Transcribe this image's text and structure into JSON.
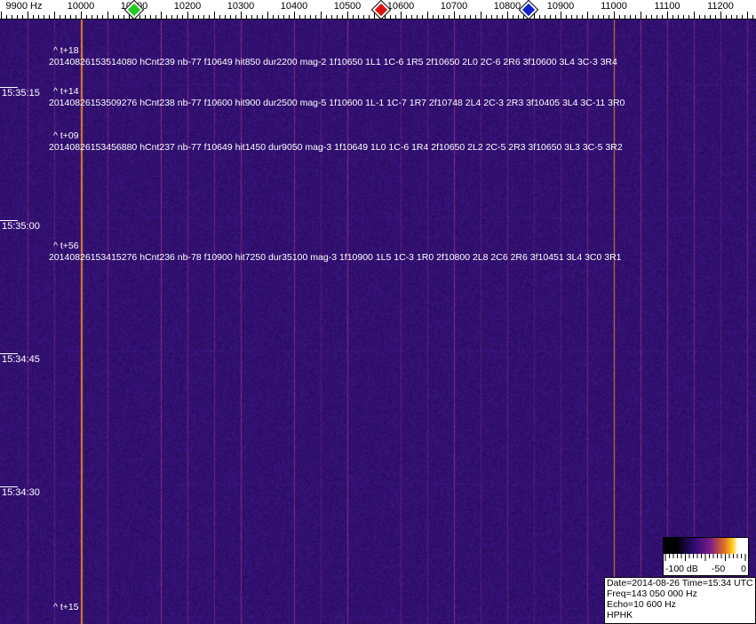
{
  "axis": {
    "unit_label": "9900 Hz",
    "freq_labels": [
      "9900 Hz",
      "10000",
      "10100",
      "10200",
      "10300",
      "10400",
      "10500",
      "10600",
      "10700",
      "10800",
      "10900",
      "11000",
      "11100",
      "11200"
    ],
    "freqs": [
      9900,
      10000,
      10100,
      10200,
      10300,
      10400,
      10500,
      10600,
      10700,
      10800,
      10900,
      11000,
      11100,
      11200
    ]
  },
  "markers": [
    {
      "name": "green-marker",
      "freq": 10100,
      "color": "#22cc22"
    },
    {
      "name": "red-marker",
      "freq": 10563,
      "color": "#dd1111"
    },
    {
      "name": "blue-marker",
      "freq": 10840,
      "color": "#1122cc"
    }
  ],
  "time_labels": [
    "15:35:15",
    "15:35:00",
    "15:34:45",
    "15:34:30"
  ],
  "annotations": [
    {
      "tag": "^ t+18",
      "text": "20140826153514080 hCnt239 nb-77 f10649 hit850 dur2200 mag-2 1f10650 1L1 1C-6 1R5 2f10650 2L0 2C-6 2R6 3f10600 3L4 3C-3 3R4"
    },
    {
      "tag": "^ t+14",
      "text": "20140826153509276 hCnt238 nb-77 f10600 hit900 dur2500 mag-5 1f10600 1L-1 1C-7 1R7 2f10748 2L4 2C-3 2R3 3f10405 3L4 3C-11 3R0"
    },
    {
      "tag": "^ t+09",
      "text": "20140826153456880 hCnt237 nb-77 f10649 hit1450 dur9050 mag-3 1f10649 1L0 1C-6 1R4 2f10650 2L2 2C-5 2R3 3f10650 3L3 3C-5 3R2"
    },
    {
      "tag": "^ t+56",
      "text": "20140826153415276 hCnt236 nb-78 f10900 hit7250 dur35100 mag-3 1f10900 1L5 1C-3 1R0 2f10800 2L8 2C6 2R6 3f10451 3L4 3C0 3R1"
    },
    {
      "tag": "^ t+15",
      "text": ""
    }
  ],
  "colorbar": {
    "labels": [
      "-100 dB",
      "-50",
      "0"
    ]
  },
  "info": {
    "line1": "Date=2014-08-26 Time=15:34 UTC",
    "line2": "Freq=143 050 000 Hz",
    "line3": "Echo=10 600 Hz",
    "line4": "HPHK"
  },
  "colors": {
    "background": "#2a1470",
    "strong_line": "#e0782a",
    "line": "#a03a9a"
  }
}
